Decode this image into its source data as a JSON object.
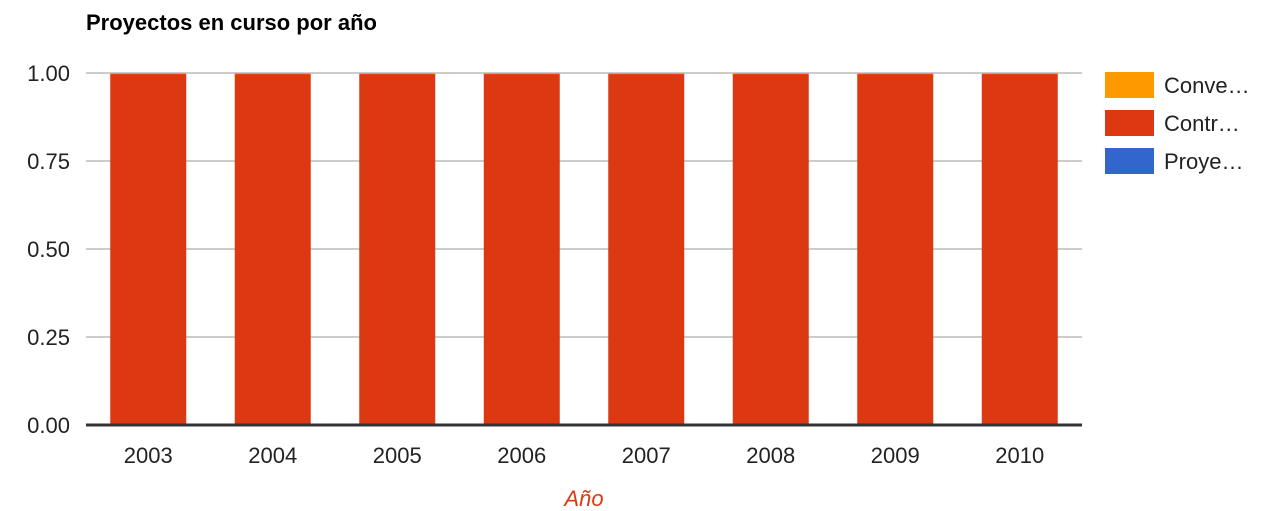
{
  "chart_data": {
    "type": "bar",
    "stacked": true,
    "title": "Proyectos en curso por año",
    "xlabel": "Año",
    "ylabel": "",
    "categories": [
      "2003",
      "2004",
      "2005",
      "2006",
      "2007",
      "2008",
      "2009",
      "2010"
    ],
    "ylim": [
      0,
      1
    ],
    "yticks": [
      "0.00",
      "0.25",
      "0.50",
      "0.75",
      "1.00"
    ],
    "grid": true,
    "legend_position": "right",
    "series": [
      {
        "name": "Proye…",
        "color": "#3366cc",
        "values": [
          0,
          0,
          0,
          0,
          0,
          0,
          0,
          0
        ]
      },
      {
        "name": "Contr…",
        "color": "#dc3912",
        "values": [
          0.997,
          0.997,
          0.997,
          0.997,
          0.997,
          0.997,
          0.997,
          0.997
        ]
      },
      {
        "name": "Conve…",
        "color": "#ff9900",
        "values": [
          0.003,
          0.003,
          0.003,
          0.003,
          0.003,
          0.003,
          0.003,
          0.003
        ]
      }
    ],
    "legend_order": [
      2,
      1,
      0
    ],
    "xlabel_color": "#dc3912"
  }
}
